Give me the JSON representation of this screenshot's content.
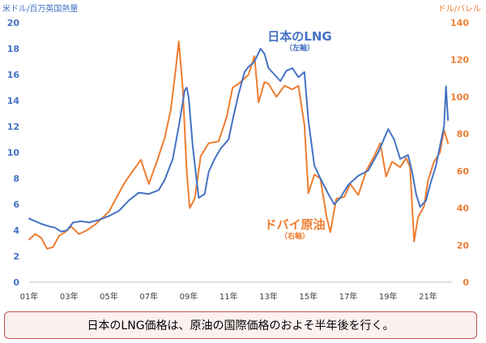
{
  "units": {
    "left": "米ドル/百万英国熱量",
    "right": "ドル/バレル"
  },
  "callouts": {
    "lng": {
      "name": "日本のLNG",
      "axis": "（左軸）"
    },
    "dubai": {
      "name": "ドバイ原油",
      "axis": "（右軸）"
    }
  },
  "caption": "日本のLNG価格は、原油の国際価格のおよそ半年後を行く。",
  "colors": {
    "lng": "#4472c4",
    "dubai": "#ed7d31",
    "caption_border": "#c0504d",
    "caption_bg": "#fdf0f0",
    "axis": "#bfbfbf"
  },
  "chart_data": {
    "type": "line",
    "xlabel": "",
    "ylabel": "",
    "x_ticks": [
      "01年",
      "03年",
      "05年",
      "07年",
      "09年",
      "11年",
      "13年",
      "15年",
      "17年",
      "19年",
      "21年"
    ],
    "x_tick_years": [
      2001,
      2003,
      2005,
      2007,
      2009,
      2011,
      2013,
      2015,
      2017,
      2019,
      2021
    ],
    "x_range": [
      2001,
      2022.2
    ],
    "y_left": {
      "ticks": [
        0,
        2,
        4,
        6,
        8,
        10,
        12,
        14,
        16,
        18,
        20
      ],
      "range": [
        0,
        20
      ]
    },
    "y_right": {
      "ticks": [
        0,
        20,
        40,
        60,
        80,
        100,
        120,
        140
      ],
      "range": [
        0,
        140
      ]
    },
    "series": [
      {
        "name": "日本のLNG",
        "axis": "left",
        "points": [
          [
            2001.0,
            4.9
          ],
          [
            2001.3,
            4.7
          ],
          [
            2001.6,
            4.5
          ],
          [
            2002.0,
            4.3
          ],
          [
            2002.3,
            4.2
          ],
          [
            2002.6,
            3.9
          ],
          [
            2002.9,
            4.0
          ],
          [
            2003.2,
            4.6
          ],
          [
            2003.6,
            4.7
          ],
          [
            2004.0,
            4.6
          ],
          [
            2004.5,
            4.8
          ],
          [
            2005.0,
            5.1
          ],
          [
            2005.5,
            5.5
          ],
          [
            2006.0,
            6.3
          ],
          [
            2006.5,
            6.9
          ],
          [
            2007.0,
            6.8
          ],
          [
            2007.5,
            7.1
          ],
          [
            2007.8,
            7.9
          ],
          [
            2008.2,
            9.5
          ],
          [
            2008.5,
            12.0
          ],
          [
            2008.8,
            14.8
          ],
          [
            2008.9,
            15.0
          ],
          [
            2009.0,
            14.2
          ],
          [
            2009.2,
            10.5
          ],
          [
            2009.5,
            6.5
          ],
          [
            2009.8,
            6.8
          ],
          [
            2010.0,
            8.5
          ],
          [
            2010.3,
            9.5
          ],
          [
            2010.6,
            10.3
          ],
          [
            2011.0,
            11.0
          ],
          [
            2011.2,
            12.5
          ],
          [
            2011.5,
            14.5
          ],
          [
            2011.8,
            16.2
          ],
          [
            2012.0,
            16.6
          ],
          [
            2012.3,
            17.0
          ],
          [
            2012.6,
            18.0
          ],
          [
            2012.8,
            17.6
          ],
          [
            2013.0,
            16.5
          ],
          [
            2013.3,
            16.0
          ],
          [
            2013.6,
            15.5
          ],
          [
            2013.9,
            16.3
          ],
          [
            2014.2,
            16.5
          ],
          [
            2014.5,
            15.8
          ],
          [
            2014.8,
            16.2
          ],
          [
            2015.0,
            12.5
          ],
          [
            2015.3,
            9.0
          ],
          [
            2015.6,
            8.0
          ],
          [
            2016.0,
            6.8
          ],
          [
            2016.3,
            6.0
          ],
          [
            2016.6,
            6.5
          ],
          [
            2017.0,
            7.5
          ],
          [
            2017.5,
            8.2
          ],
          [
            2018.0,
            8.6
          ],
          [
            2018.5,
            10.0
          ],
          [
            2019.0,
            11.8
          ],
          [
            2019.3,
            11.0
          ],
          [
            2019.6,
            9.5
          ],
          [
            2020.0,
            9.8
          ],
          [
            2020.2,
            8.5
          ],
          [
            2020.4,
            6.8
          ],
          [
            2020.6,
            5.8
          ],
          [
            2020.9,
            6.3
          ],
          [
            2021.1,
            7.5
          ],
          [
            2021.4,
            9.0
          ],
          [
            2021.6,
            10.5
          ],
          [
            2021.8,
            12.0
          ],
          [
            2021.9,
            15.1
          ],
          [
            2022.0,
            12.5
          ]
        ]
      },
      {
        "name": "ドバイ原油",
        "axis": "right",
        "points": [
          [
            2001.0,
            23
          ],
          [
            2001.3,
            26
          ],
          [
            2001.6,
            24
          ],
          [
            2001.9,
            18
          ],
          [
            2002.2,
            19
          ],
          [
            2002.5,
            25
          ],
          [
            2002.8,
            27
          ],
          [
            2003.1,
            30
          ],
          [
            2003.5,
            26
          ],
          [
            2003.9,
            28
          ],
          [
            2004.3,
            31
          ],
          [
            2004.7,
            35
          ],
          [
            2005.0,
            38
          ],
          [
            2005.4,
            46
          ],
          [
            2005.8,
            54
          ],
          [
            2006.2,
            60
          ],
          [
            2006.6,
            66
          ],
          [
            2007.0,
            53
          ],
          [
            2007.4,
            65
          ],
          [
            2007.8,
            78
          ],
          [
            2008.1,
            93
          ],
          [
            2008.35,
            115
          ],
          [
            2008.5,
            130
          ],
          [
            2008.7,
            105
          ],
          [
            2008.9,
            60
          ],
          [
            2009.05,
            40
          ],
          [
            2009.3,
            45
          ],
          [
            2009.6,
            68
          ],
          [
            2010.0,
            75
          ],
          [
            2010.5,
            76
          ],
          [
            2010.9,
            89
          ],
          [
            2011.2,
            105
          ],
          [
            2011.5,
            107
          ],
          [
            2011.8,
            110
          ],
          [
            2012.0,
            112
          ],
          [
            2012.3,
            122
          ],
          [
            2012.5,
            97
          ],
          [
            2012.8,
            108
          ],
          [
            2013.0,
            107
          ],
          [
            2013.4,
            100
          ],
          [
            2013.8,
            106
          ],
          [
            2014.2,
            104
          ],
          [
            2014.5,
            106
          ],
          [
            2014.8,
            85
          ],
          [
            2015.0,
            48
          ],
          [
            2015.3,
            58
          ],
          [
            2015.6,
            56
          ],
          [
            2015.9,
            36
          ],
          [
            2016.1,
            27
          ],
          [
            2016.4,
            45
          ],
          [
            2016.8,
            46
          ],
          [
            2017.1,
            53
          ],
          [
            2017.5,
            47
          ],
          [
            2017.9,
            60
          ],
          [
            2018.3,
            68
          ],
          [
            2018.6,
            75
          ],
          [
            2018.9,
            57
          ],
          [
            2019.2,
            65
          ],
          [
            2019.6,
            62
          ],
          [
            2019.9,
            67
          ],
          [
            2020.1,
            62
          ],
          [
            2020.3,
            22
          ],
          [
            2020.5,
            35
          ],
          [
            2020.8,
            41
          ],
          [
            2021.0,
            55
          ],
          [
            2021.3,
            65
          ],
          [
            2021.6,
            70
          ],
          [
            2021.8,
            82
          ],
          [
            2022.0,
            75
          ]
        ]
      }
    ],
    "grid": false,
    "legend": "none"
  }
}
